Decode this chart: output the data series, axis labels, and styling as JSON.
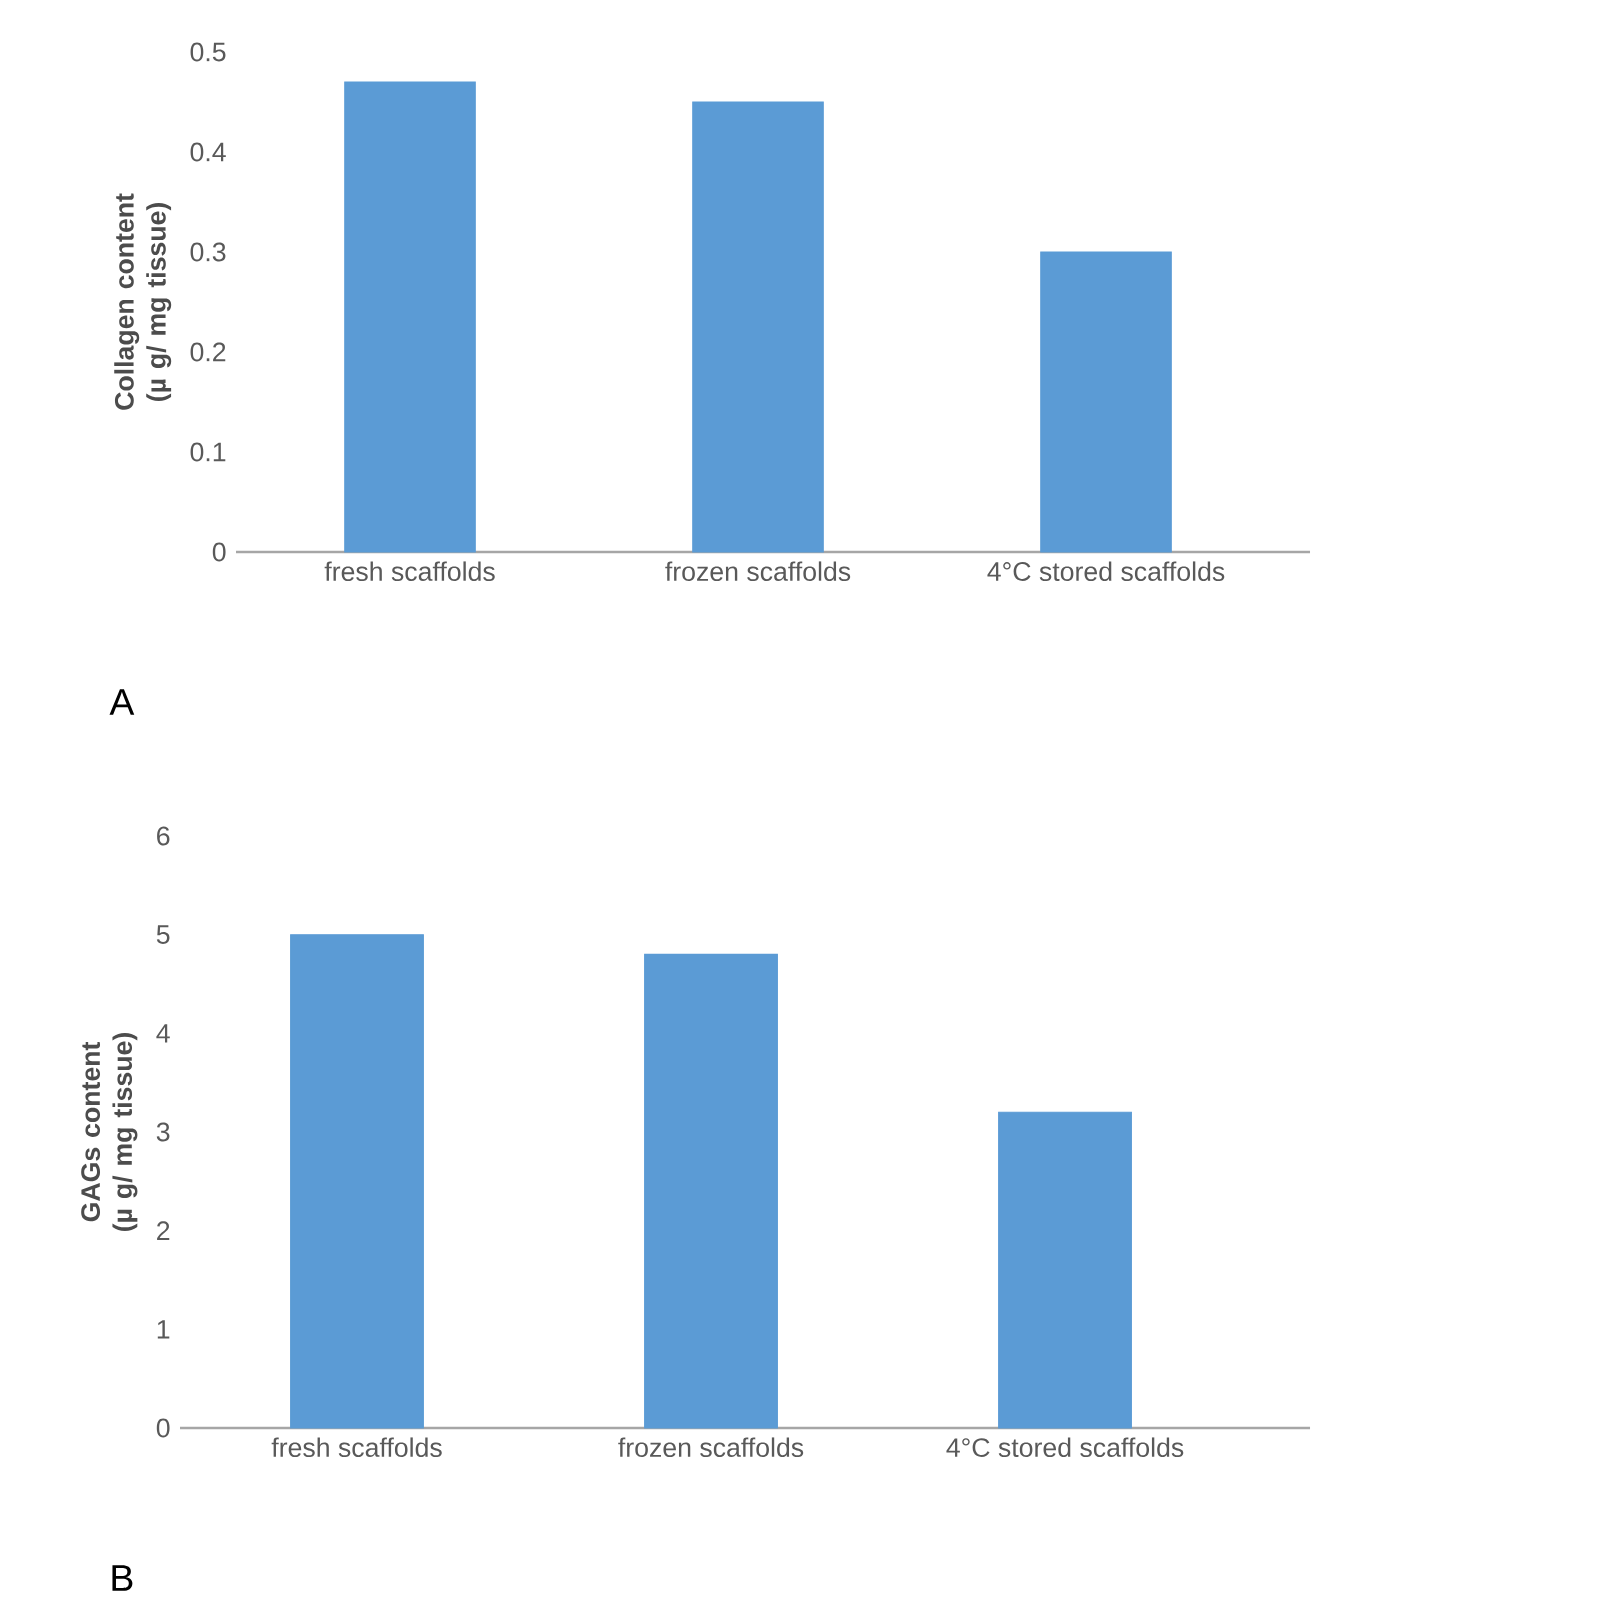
{
  "chart_data": [
    {
      "type": "bar",
      "ylabel": "Collagen content (µ g/ mg tissue)",
      "categories": [
        "fresh scaffolds",
        "frozen scaffolds",
        "4°C stored scaffolds"
      ],
      "values": [
        0.47,
        0.45,
        0.3
      ],
      "color": "#5b9bd5",
      "ylim": [
        0,
        0.5
      ],
      "yticks": [
        0,
        0.1,
        0.2,
        0.3,
        0.4,
        0.5
      ],
      "grid": false,
      "annotations": [
        "A"
      ]
    },
    {
      "type": "bar",
      "ylabel": "GAGs content (µ g/ mg tissue)",
      "categories": [
        "fresh scaffolds",
        "frozen scaffolds",
        "4°C stored scaffolds"
      ],
      "values": [
        5,
        4.8,
        3.2
      ],
      "color": "#5b9bd5",
      "ylim": [
        0,
        6
      ],
      "yticks": [
        0,
        1,
        2,
        3,
        4,
        5,
        6
      ],
      "grid": false,
      "annotations": [
        "B"
      ]
    }
  ]
}
